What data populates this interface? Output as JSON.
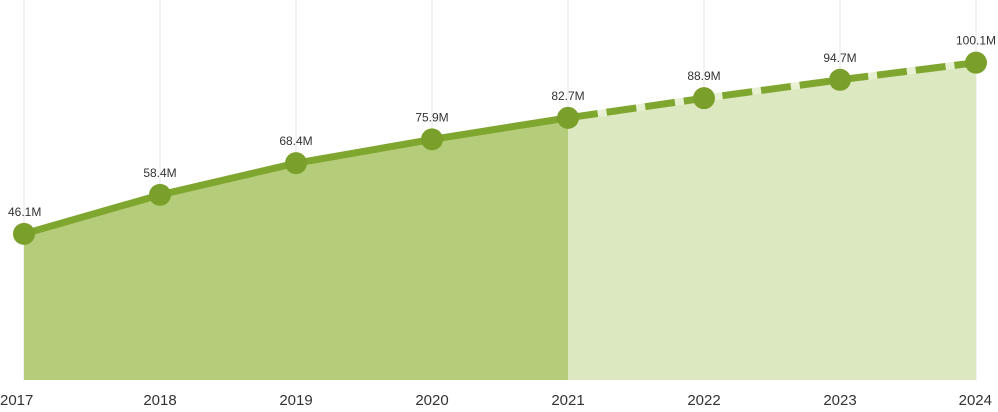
{
  "chart_data": {
    "type": "area",
    "title": "",
    "xlabel": "",
    "ylabel": "",
    "x": [
      "2017",
      "2018",
      "2019",
      "2020",
      "2021",
      "2022",
      "2023",
      "2024"
    ],
    "values": [
      46.1,
      58.4,
      68.4,
      75.9,
      82.7,
      88.9,
      94.7,
      100.1
    ],
    "data_labels": [
      "46.1M",
      "58.4M",
      "68.4M",
      "75.9M",
      "82.7M",
      "88.9M",
      "94.7M",
      "100.1M"
    ],
    "actual_through": "2021",
    "projected_from": "2021",
    "ylim": [
      0,
      120
    ],
    "grid": {
      "vertical": true,
      "horizontal": false
    },
    "legend": "none",
    "colors": {
      "line": "#7fa72f",
      "marker": "#7a9f2a",
      "area_actual": "#b5cd7a",
      "area_projected": "#dce8c0",
      "grid": "#e6e6e6",
      "dash_gap": "#e8f0d4"
    }
  }
}
